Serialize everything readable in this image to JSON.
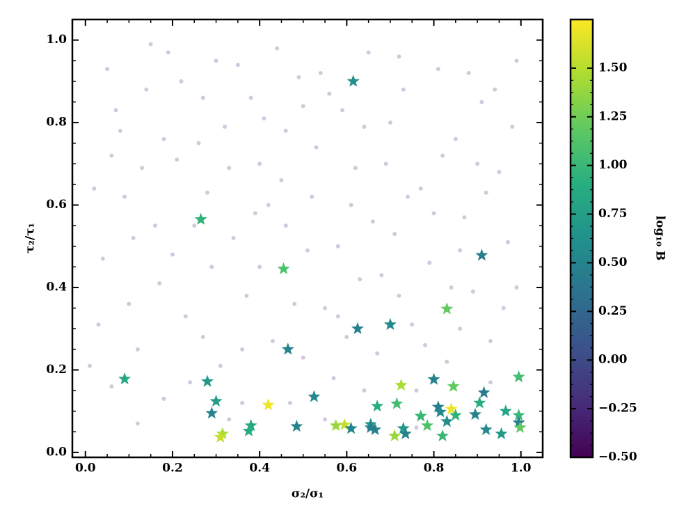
{
  "chart_data": {
    "type": "scatter",
    "xlabel": "σ₂/σ₁",
    "ylabel": "τ₂/τ₁",
    "xlim": [
      -0.03,
      1.05
    ],
    "ylim": [
      -0.012,
      1.05
    ],
    "xticks": [
      {
        "value": 0,
        "label": "0.0"
      },
      {
        "value": 0.2,
        "label": "0.2"
      },
      {
        "value": 0.4,
        "label": "0.4"
      },
      {
        "value": 0.6,
        "label": "0.6"
      },
      {
        "value": 0.8,
        "label": "0.8"
      },
      {
        "value": 1,
        "label": "1.0"
      }
    ],
    "yticks": [
      {
        "value": 0,
        "label": "0.0"
      },
      {
        "value": 0.2,
        "label": "0.2"
      },
      {
        "value": 0.4,
        "label": "0.4"
      },
      {
        "value": 0.6,
        "label": "0.6"
      },
      {
        "value": 0.8,
        "label": "0.8"
      },
      {
        "value": 1,
        "label": "1.0"
      }
    ],
    "series": [
      {
        "marker": "circle",
        "color": "#6a4c8c",
        "opacity": 0.3,
        "x": [
          0.02,
          0.05,
          0.08,
          0.11,
          0.03,
          0.06,
          0.14,
          0.17,
          0.12,
          0.09,
          0.19,
          0.21,
          0.23,
          0.18,
          0.25,
          0.27,
          0.29,
          0.31,
          0.33,
          0.35,
          0.37,
          0.39,
          0.41,
          0.43,
          0.45,
          0.47,
          0.49,
          0.51,
          0.53,
          0.55,
          0.57,
          0.59,
          0.61,
          0.63,
          0.65,
          0.67,
          0.69,
          0.71,
          0.73,
          0.75,
          0.77,
          0.79,
          0.81,
          0.83,
          0.85,
          0.87,
          0.89,
          0.91,
          0.93,
          0.95,
          0.97,
          0.99,
          0.04,
          0.07,
          0.13,
          0.16,
          0.22,
          0.24,
          0.28,
          0.32,
          0.36,
          0.4,
          0.44,
          0.48,
          0.52,
          0.56,
          0.6,
          0.64,
          0.68,
          0.72,
          0.76,
          0.8,
          0.84,
          0.88,
          0.92,
          0.96,
          0.98,
          0.1,
          0.15,
          0.2,
          0.26,
          0.3,
          0.34,
          0.38,
          0.42,
          0.46,
          0.5,
          0.54,
          0.58,
          0.62,
          0.66,
          0.7,
          0.74,
          0.78,
          0.82,
          0.86,
          0.9,
          0.94,
          0.01,
          0.99,
          0.33,
          0.55,
          0.76,
          0.12,
          0.46,
          0.58,
          0.27,
          0.86,
          0.64,
          0.18,
          0.4,
          0.72,
          0.93,
          0.06,
          0.5,
          0.36
        ],
        "y": [
          0.64,
          0.93,
          0.78,
          0.52,
          0.31,
          0.16,
          0.88,
          0.41,
          0.25,
          0.62,
          0.97,
          0.71,
          0.33,
          0.13,
          0.55,
          0.86,
          0.45,
          0.21,
          0.69,
          0.94,
          0.38,
          0.58,
          0.81,
          0.27,
          0.66,
          0.12,
          0.91,
          0.49,
          0.74,
          0.35,
          0.18,
          0.83,
          0.6,
          0.42,
          0.97,
          0.24,
          0.7,
          0.53,
          0.88,
          0.31,
          0.64,
          0.46,
          0.93,
          0.22,
          0.76,
          0.57,
          0.39,
          0.85,
          0.27,
          0.68,
          0.51,
          0.95,
          0.47,
          0.83,
          0.69,
          0.55,
          0.9,
          0.17,
          0.63,
          0.79,
          0.12,
          0.45,
          0.98,
          0.36,
          0.62,
          0.87,
          0.28,
          0.79,
          0.43,
          0.96,
          0.15,
          0.58,
          0.4,
          0.92,
          0.63,
          0.35,
          0.79,
          0.36,
          0.99,
          0.48,
          0.75,
          0.95,
          0.52,
          0.86,
          0.6,
          0.78,
          0.23,
          0.92,
          0.5,
          0.69,
          0.56,
          0.8,
          0.62,
          0.26,
          0.72,
          0.49,
          0.7,
          0.88,
          0.21,
          0.4,
          0.08,
          0.08,
          0.06,
          0.07,
          0.55,
          0.33,
          0.28,
          0.3,
          0.15,
          0.76,
          0.7,
          0.38,
          0.17,
          0.72,
          0.84,
          0.25
        ]
      },
      {
        "marker": "star",
        "colormap": "viridis",
        "x": [
          0.615,
          0.265,
          0.455,
          0.91,
          0.83,
          0.625,
          0.7,
          0.465,
          0.09,
          0.28,
          0.3,
          0.29,
          0.315,
          0.31,
          0.375,
          0.38,
          0.42,
          0.485,
          0.525,
          0.575,
          0.595,
          0.61,
          0.655,
          0.655,
          0.665,
          0.67,
          0.71,
          0.715,
          0.725,
          0.73,
          0.735,
          0.77,
          0.785,
          0.8,
          0.81,
          0.815,
          0.82,
          0.83,
          0.84,
          0.845,
          0.85,
          0.895,
          0.905,
          0.915,
          0.92,
          0.955,
          0.965,
          0.995,
          0.995,
          0.995,
          0.998
        ],
        "y": [
          0.9,
          0.565,
          0.445,
          0.478,
          0.348,
          0.3,
          0.31,
          0.25,
          0.178,
          0.172,
          0.124,
          0.095,
          0.045,
          0.037,
          0.052,
          0.065,
          0.115,
          0.063,
          0.135,
          0.065,
          0.067,
          0.058,
          0.068,
          0.06,
          0.055,
          0.112,
          0.04,
          0.118,
          0.163,
          0.058,
          0.045,
          0.088,
          0.065,
          0.177,
          0.11,
          0.098,
          0.04,
          0.075,
          0.105,
          0.16,
          0.09,
          0.092,
          0.12,
          0.145,
          0.055,
          0.045,
          0.1,
          0.183,
          0.09,
          0.072,
          0.06
        ],
        "c": [
          0.6,
          0.95,
          1.1,
          0.45,
          1.2,
          0.5,
          0.55,
          0.5,
          0.85,
          0.7,
          0.75,
          0.5,
          1.45,
          1.55,
          0.9,
          0.85,
          1.7,
          0.5,
          0.55,
          1.4,
          1.55,
          0.5,
          0.7,
          0.45,
          0.5,
          0.9,
          1.4,
          1.05,
          1.45,
          0.7,
          0.5,
          1.0,
          1.1,
          0.5,
          0.45,
          0.55,
          1.0,
          0.6,
          1.7,
          1.2,
          0.95,
          0.5,
          0.9,
          0.45,
          0.55,
          0.7,
          0.8,
          1.05,
          1.0,
          0.45,
          1.2
        ]
      }
    ],
    "colorbar": {
      "label": "log₁₀ B",
      "clim": [
        -0.5,
        1.75
      ],
      "ticks": [
        {
          "value": -0.5,
          "label": "−0.50"
        },
        {
          "value": -0.25,
          "label": "−0.25"
        },
        {
          "value": 0,
          "label": "0.00"
        },
        {
          "value": 0.25,
          "label": "0.25"
        },
        {
          "value": 0.5,
          "label": "0.50"
        },
        {
          "value": 0.75,
          "label": "0.75"
        },
        {
          "value": 1,
          "label": "1.00"
        },
        {
          "value": 1.25,
          "label": "1.25"
        },
        {
          "value": 1.5,
          "label": "1.50"
        }
      ]
    }
  }
}
